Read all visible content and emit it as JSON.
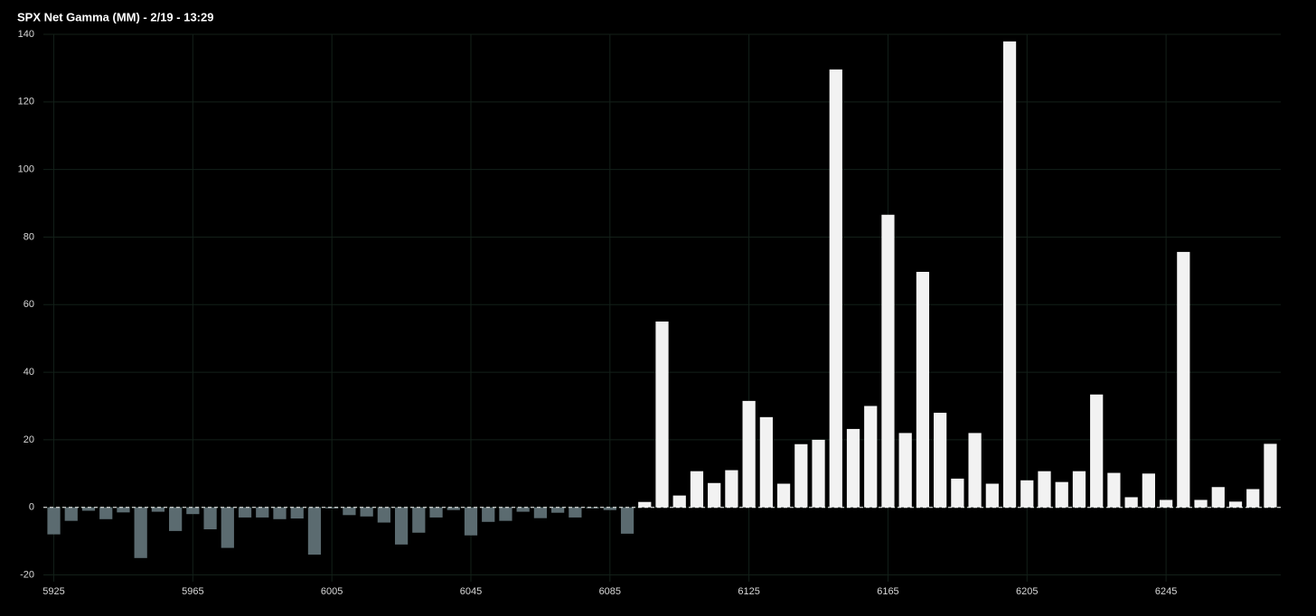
{
  "chart_data": {
    "type": "bar",
    "title": "SPX Net Gamma (MM) - 2/19 - 13:29",
    "x": [
      5925,
      5930,
      5935,
      5940,
      5945,
      5950,
      5955,
      5960,
      5965,
      5970,
      5975,
      5980,
      5985,
      5990,
      5995,
      6000,
      6005,
      6010,
      6015,
      6020,
      6025,
      6030,
      6035,
      6040,
      6045,
      6050,
      6055,
      6060,
      6065,
      6070,
      6075,
      6080,
      6085,
      6090,
      6095,
      6100,
      6105,
      6110,
      6115,
      6120,
      6125,
      6130,
      6135,
      6140,
      6145,
      6150,
      6155,
      6160,
      6165,
      6170,
      6175,
      6180,
      6185,
      6190,
      6195,
      6200,
      6205,
      6210,
      6215,
      6220,
      6225,
      6230,
      6235,
      6240,
      6245,
      6250,
      6255,
      6260,
      6265,
      6270,
      6275
    ],
    "values": [
      -8,
      -4,
      -1,
      -3.5,
      -1.5,
      -15,
      -1.3,
      -7,
      -2,
      -6.5,
      -12,
      -3,
      -3,
      -3.5,
      -3.3,
      -14,
      -0.3,
      -2.3,
      -2.7,
      -4.5,
      -11,
      -7.5,
      -3,
      -0.8,
      -8.3,
      -4.3,
      -4,
      -1.3,
      -3.2,
      -1.6,
      -3,
      -0.3,
      -0.8,
      -7.8,
      1.6,
      55,
      3.5,
      10.7,
      7.2,
      11,
      31.5,
      26.7,
      7,
      18.7,
      20,
      129.6,
      23.2,
      30,
      86.6,
      22,
      69.7,
      28,
      8.5,
      22,
      7,
      137.9,
      8,
      10.7,
      7.5,
      10.7,
      33.4,
      10.2,
      3,
      10,
      2.2,
      75.6,
      2.2,
      6,
      1.7,
      5.4,
      18.8
    ],
    "color_positive": "#f2f2f2",
    "color_negative": "#5b6b70",
    "xlim": [
      5922,
      6278
    ],
    "xticks": [
      5925,
      5965,
      6005,
      6045,
      6085,
      6125,
      6165,
      6205,
      6245
    ],
    "ylim": [
      -22,
      140
    ],
    "yticks": [
      -20,
      0,
      20,
      40,
      60,
      80,
      100,
      120,
      140
    ],
    "grid": true
  }
}
